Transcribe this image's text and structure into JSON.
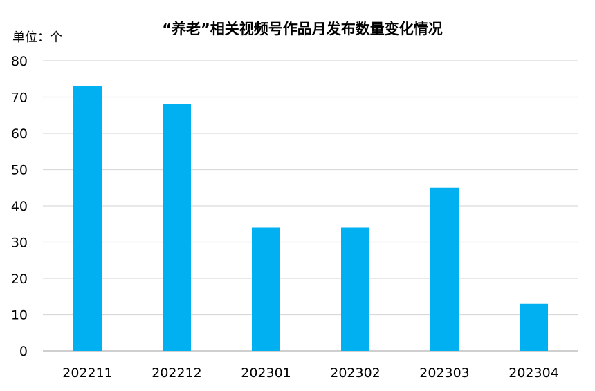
{
  "chart_data": {
    "type": "bar",
    "title": "“养老”相关视频号作品月发布数量变化情况",
    "unit_label": "单位：个",
    "xlabel": "",
    "ylabel": "",
    "categories": [
      "202211",
      "202212",
      "202301",
      "202302",
      "202303",
      "202304"
    ],
    "values": [
      73,
      68,
      34,
      34,
      45,
      13
    ],
    "ylim": [
      0,
      80
    ],
    "yticks": [
      0,
      10,
      20,
      30,
      40,
      50,
      60,
      70,
      80
    ],
    "grid": true,
    "legend": "none",
    "colors": {
      "bar": "#00B0F0",
      "grid": "#D9D9D9",
      "axis": "#BFBFBF",
      "text": "#000000"
    }
  }
}
